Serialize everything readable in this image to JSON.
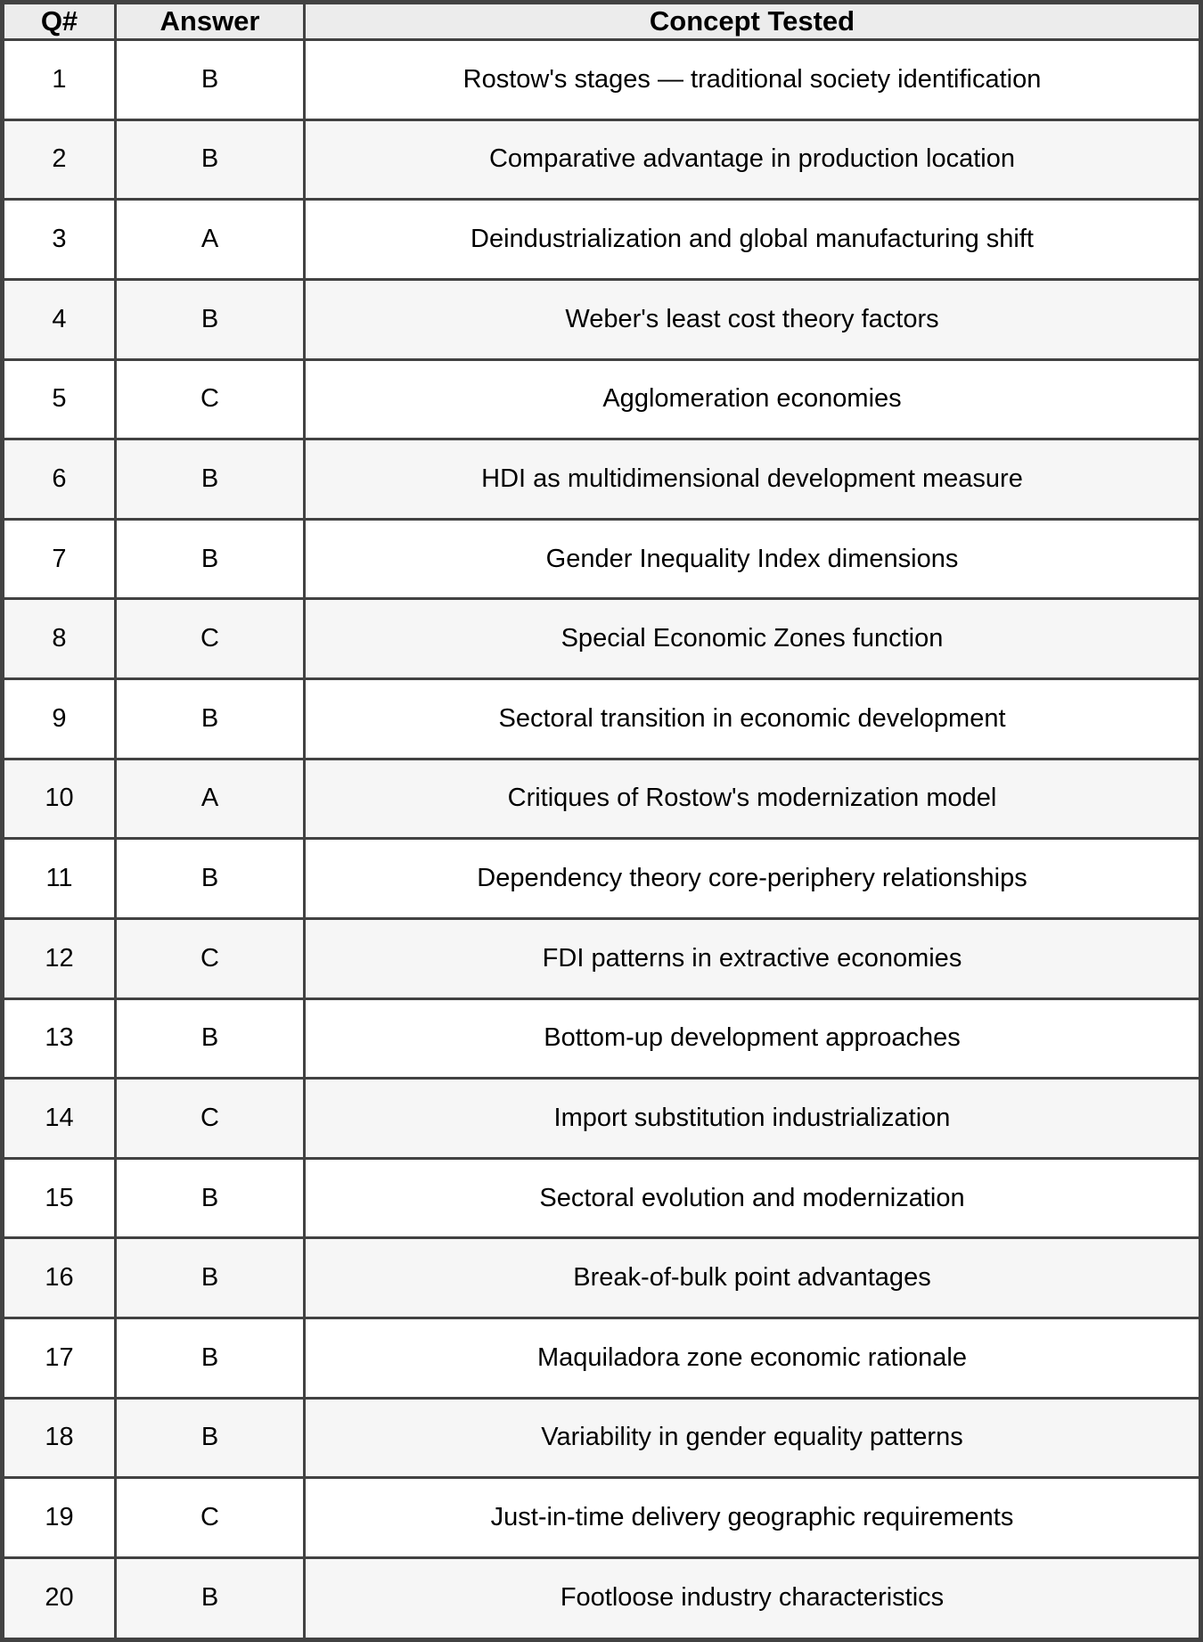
{
  "header": {
    "q": "Q#",
    "answer": "Answer",
    "concept": "Concept Tested"
  },
  "rows": [
    {
      "q": "1",
      "answer": "B",
      "concept": "Rostow's stages — traditional society identification"
    },
    {
      "q": "2",
      "answer": "B",
      "concept": "Comparative advantage in production location"
    },
    {
      "q": "3",
      "answer": "A",
      "concept": "Deindustrialization and global manufacturing shift"
    },
    {
      "q": "4",
      "answer": "B",
      "concept": "Weber's least cost theory factors"
    },
    {
      "q": "5",
      "answer": "C",
      "concept": "Agglomeration economies"
    },
    {
      "q": "6",
      "answer": "B",
      "concept": "HDI as multidimensional development measure"
    },
    {
      "q": "7",
      "answer": "B",
      "concept": "Gender Inequality Index dimensions"
    },
    {
      "q": "8",
      "answer": "C",
      "concept": "Special Economic Zones function"
    },
    {
      "q": "9",
      "answer": "B",
      "concept": "Sectoral transition in economic development"
    },
    {
      "q": "10",
      "answer": "A",
      "concept": "Critiques of Rostow's modernization model"
    },
    {
      "q": "11",
      "answer": "B",
      "concept": "Dependency theory core-periphery relationships"
    },
    {
      "q": "12",
      "answer": "C",
      "concept": "FDI patterns in extractive economies"
    },
    {
      "q": "13",
      "answer": "B",
      "concept": "Bottom-up development approaches"
    },
    {
      "q": "14",
      "answer": "C",
      "concept": "Import substitution industrialization"
    },
    {
      "q": "15",
      "answer": "B",
      "concept": "Sectoral evolution and modernization"
    },
    {
      "q": "16",
      "answer": "B",
      "concept": "Break-of-bulk point advantages"
    },
    {
      "q": "17",
      "answer": "B",
      "concept": "Maquiladora zone economic rationale"
    },
    {
      "q": "18",
      "answer": "B",
      "concept": "Variability in gender equality patterns"
    },
    {
      "q": "19",
      "answer": "C",
      "concept": "Just-in-time delivery geographic requirements"
    },
    {
      "q": "20",
      "answer": "B",
      "concept": "Footloose industry characteristics"
    }
  ],
  "theme": {
    "border": "#424242",
    "header_bg": "#ececec",
    "stripe_bg": "#f6f6f6",
    "row_bg": "#ffffff",
    "text": "#000000"
  }
}
